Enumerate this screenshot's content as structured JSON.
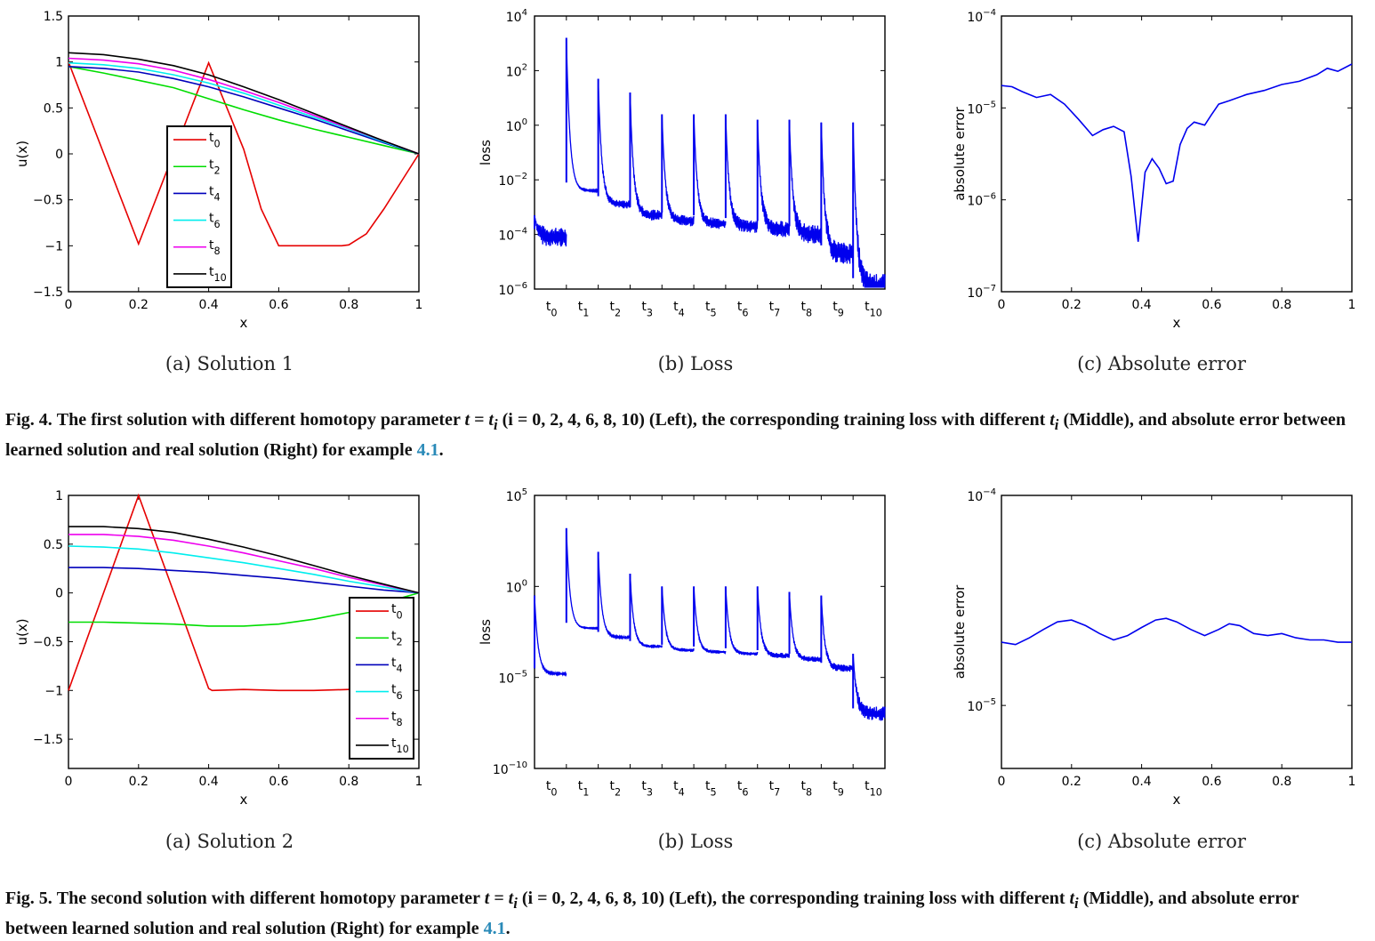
{
  "colors": {
    "t0": "#e60000",
    "t2": "#00dd00",
    "t4": "#0000bb",
    "t6": "#00eeee",
    "t8": "#ee00ee",
    "t10": "#000000",
    "loss": "#0000ee",
    "err": "#0000ee"
  },
  "legend_labels": [
    "t0",
    "t2",
    "t4",
    "t6",
    "t8",
    "t10"
  ],
  "loss_ticks": [
    "t0",
    "t1",
    "t2",
    "t3",
    "t4",
    "t5",
    "t6",
    "t7",
    "t8",
    "t9",
    "t10"
  ],
  "fig4": {
    "sub_a": "(a) Solution 1",
    "sub_b": "(b) Loss",
    "sub_c": "(c) Absolute error",
    "caption": {
      "label": "Fig. 4.",
      "text1": "The first solution with different homotopy parameter ",
      "math1": "t = t",
      "math1_sub": "i",
      "text2": " (i = 0, 2, 4, 6, 8, 10) (Left), the corresponding training loss with different ",
      "math2": "t",
      "math2_sub": "i",
      "text3": " (Middle), and absolute error between learned solution and real solution (Right) for example ",
      "ref": "4.1",
      "text4": "."
    }
  },
  "fig5": {
    "sub_a": "(a) Solution 2",
    "sub_b": "(b) Loss",
    "sub_c": "(c) Absolute error",
    "caption": {
      "label": "Fig. 5.",
      "text1": "The second solution with different homotopy parameter ",
      "math1": "t = t",
      "math1_sub": "i",
      "text2": " (i = 0, 2, 4, 6, 8, 10) (Left), the corresponding training loss with different ",
      "math2": "t",
      "math2_sub": "i",
      "text3": " (Middle), and absolute error between learned solution and real solution (Right) for example ",
      "ref": "4.1",
      "text4": "."
    }
  },
  "chart_data": [
    {
      "id": "sol1",
      "type": "line",
      "xlabel": "x",
      "ylabel": "u(x)",
      "xlim": [
        0,
        1
      ],
      "ylim": [
        -1.5,
        1.5
      ],
      "xticks": [
        0,
        0.2,
        0.4,
        0.6,
        0.8,
        1
      ],
      "xtick_labels": [
        "0",
        "0.2",
        "0.4",
        "0.6",
        "0.8",
        "1"
      ],
      "yticks": [
        -1.5,
        -1,
        -0.5,
        0,
        0.5,
        1,
        1.5
      ],
      "ytick_labels": [
        "−1.5",
        "−1",
        "−0.5",
        "0",
        "0.5",
        "1",
        "1.5"
      ],
      "legend": "center-left",
      "series": [
        {
          "name": "t0",
          "color": "#e60000",
          "x": [
            0,
            0.2,
            0.4,
            0.5,
            0.55,
            0.6,
            0.7,
            0.78,
            0.8,
            0.85,
            0.9,
            0.95,
            1
          ],
          "y": [
            1,
            -0.98,
            0.99,
            0.05,
            -0.6,
            -1.0,
            -1.0,
            -1.0,
            -0.99,
            -0.87,
            -0.6,
            -0.3,
            0
          ]
        },
        {
          "name": "t2",
          "color": "#00dd00",
          "x": [
            0,
            0.1,
            0.2,
            0.3,
            0.4,
            0.5,
            0.6,
            0.7,
            0.8,
            0.9,
            1
          ],
          "y": [
            0.95,
            0.88,
            0.8,
            0.72,
            0.6,
            0.48,
            0.37,
            0.27,
            0.18,
            0.09,
            0
          ]
        },
        {
          "name": "t4",
          "color": "#0000bb",
          "x": [
            0,
            0.1,
            0.2,
            0.3,
            0.4,
            0.5,
            0.6,
            0.7,
            0.8,
            0.9,
            1
          ],
          "y": [
            0.95,
            0.93,
            0.89,
            0.82,
            0.73,
            0.62,
            0.5,
            0.38,
            0.25,
            0.12,
            0
          ]
        },
        {
          "name": "t6",
          "color": "#00eeee",
          "x": [
            0,
            0.1,
            0.2,
            0.3,
            0.4,
            0.5,
            0.6,
            0.7,
            0.8,
            0.9,
            1
          ],
          "y": [
            0.99,
            0.97,
            0.93,
            0.86,
            0.77,
            0.66,
            0.53,
            0.4,
            0.27,
            0.13,
            0
          ]
        },
        {
          "name": "t8",
          "color": "#ee00ee",
          "x": [
            0,
            0.1,
            0.2,
            0.3,
            0.4,
            0.5,
            0.6,
            0.7,
            0.8,
            0.9,
            1
          ],
          "y": [
            1.04,
            1.02,
            0.98,
            0.91,
            0.81,
            0.69,
            0.56,
            0.42,
            0.28,
            0.14,
            0
          ]
        },
        {
          "name": "t10",
          "color": "#000000",
          "x": [
            0,
            0.1,
            0.2,
            0.3,
            0.4,
            0.5,
            0.6,
            0.7,
            0.8,
            0.9,
            1
          ],
          "y": [
            1.1,
            1.08,
            1.03,
            0.96,
            0.86,
            0.73,
            0.59,
            0.44,
            0.29,
            0.14,
            0
          ]
        }
      ]
    },
    {
      "id": "loss1",
      "type": "line",
      "ylabel": "loss",
      "log_y": true,
      "ylim_exp": [
        -6,
        4
      ],
      "ytick_exps": [
        -6,
        -4,
        -2,
        0,
        2,
        4
      ],
      "xlim": [
        0,
        11
      ],
      "xtick_positions": [
        0.5,
        1.5,
        2.5,
        3.5,
        4.5,
        5.5,
        6.5,
        7.5,
        8.5,
        9.5,
        10.5
      ],
      "series": [
        {
          "name": "loss",
          "color": "#0000ee",
          "segments": [
            {
              "x0": 0,
              "x1": 1,
              "peak": -3.3,
              "end": -4.1,
              "noise": 0.7
            },
            {
              "x0": 1,
              "x1": 2,
              "peak": 3.2,
              "end": -2.4,
              "noise": 0.05
            },
            {
              "x0": 2,
              "x1": 3,
              "peak": 1.7,
              "end": -2.9,
              "noise": 0.3
            },
            {
              "x0": 3,
              "x1": 4,
              "peak": 1.2,
              "end": -3.3,
              "noise": 0.4
            },
            {
              "x0": 4,
              "x1": 5,
              "peak": 0.4,
              "end": -3.5,
              "noise": 0.4
            },
            {
              "x0": 5,
              "x1": 6,
              "peak": 0.4,
              "end": -3.6,
              "noise": 0.4
            },
            {
              "x0": 6,
              "x1": 7,
              "peak": 0.4,
              "end": -3.7,
              "noise": 0.5
            },
            {
              "x0": 7,
              "x1": 8,
              "peak": 0.2,
              "end": -3.8,
              "noise": 0.6
            },
            {
              "x0": 8,
              "x1": 9,
              "peak": 0.2,
              "end": -4.0,
              "noise": 0.7
            },
            {
              "x0": 9,
              "x1": 10,
              "peak": 0.1,
              "end": -4.7,
              "noise": 0.8
            },
            {
              "x0": 10,
              "x1": 11,
              "peak": 0.1,
              "end": -5.9,
              "noise": 0.9
            }
          ]
        }
      ]
    },
    {
      "id": "err1",
      "type": "line",
      "xlabel": "x",
      "ylabel": "absolute error",
      "log_y": true,
      "ylim_exp": [
        -7,
        -4
      ],
      "ytick_exps": [
        -7,
        -6,
        -5,
        -4
      ],
      "xlim": [
        0,
        1
      ],
      "xticks": [
        0,
        0.2,
        0.4,
        0.6,
        0.8,
        1
      ],
      "xtick_labels": [
        "0",
        "0.2",
        "0.4",
        "0.6",
        "0.8",
        "1"
      ],
      "series": [
        {
          "name": "err",
          "color": "#0000ee",
          "x": [
            0,
            0.03,
            0.06,
            0.1,
            0.14,
            0.18,
            0.22,
            0.26,
            0.29,
            0.32,
            0.35,
            0.37,
            0.39,
            0.41,
            0.43,
            0.45,
            0.47,
            0.49,
            0.51,
            0.53,
            0.55,
            0.58,
            0.6,
            0.62,
            0.65,
            0.7,
            0.75,
            0.8,
            0.85,
            0.9,
            0.93,
            0.96,
            1
          ],
          "y": [
            1.75e-05,
            1.7e-05,
            1.5e-05,
            1.3e-05,
            1.4e-05,
            1.1e-05,
            7.5e-06,
            5e-06,
            5.8e-06,
            6.3e-06,
            5.5e-06,
            1.8e-06,
            3.5e-07,
            2e-06,
            2.8e-06,
            2.2e-06,
            1.5e-06,
            1.6e-06,
            4e-06,
            6e-06,
            7e-06,
            6.5e-06,
            8.5e-06,
            1.1e-05,
            1.2e-05,
            1.4e-05,
            1.55e-05,
            1.8e-05,
            1.95e-05,
            2.3e-05,
            2.7e-05,
            2.5e-05,
            3e-05
          ]
        }
      ]
    },
    {
      "id": "sol2",
      "type": "line",
      "xlabel": "x",
      "ylabel": "u(x)",
      "xlim": [
        0,
        1
      ],
      "ylim": [
        -1.8,
        1
      ],
      "xticks": [
        0,
        0.2,
        0.4,
        0.6,
        0.8,
        1
      ],
      "xtick_labels": [
        "0",
        "0.2",
        "0.4",
        "0.6",
        "0.8",
        "1"
      ],
      "yticks": [
        -1.5,
        -1,
        -0.5,
        0,
        0.5,
        1
      ],
      "ytick_labels": [
        "−1.5",
        "−1",
        "−0.5",
        "0",
        "0.5",
        "1"
      ],
      "legend": "bottom-right",
      "series": [
        {
          "name": "t0",
          "color": "#e60000",
          "x": [
            0,
            0.2,
            0.4,
            0.41,
            0.5,
            0.6,
            0.7,
            0.8
          ],
          "y": [
            -1,
            1,
            -0.98,
            -1.0,
            -0.99,
            -1.0,
            -1.0,
            -0.99
          ]
        },
        {
          "name": "t2",
          "color": "#00dd00",
          "x": [
            0,
            0.1,
            0.2,
            0.3,
            0.4,
            0.5,
            0.6,
            0.7,
            0.8,
            0.9,
            1
          ],
          "y": [
            -0.3,
            -0.3,
            -0.31,
            -0.32,
            -0.34,
            -0.34,
            -0.32,
            -0.27,
            -0.2,
            -0.1,
            0
          ]
        },
        {
          "name": "t4",
          "color": "#0000bb",
          "x": [
            0,
            0.1,
            0.2,
            0.3,
            0.4,
            0.5,
            0.6,
            0.7,
            0.8,
            0.9,
            1
          ],
          "y": [
            0.26,
            0.26,
            0.25,
            0.23,
            0.21,
            0.18,
            0.15,
            0.11,
            0.07,
            0.03,
            0
          ]
        },
        {
          "name": "t6",
          "color": "#00eeee",
          "x": [
            0,
            0.1,
            0.2,
            0.3,
            0.4,
            0.5,
            0.6,
            0.7,
            0.8,
            0.9,
            1
          ],
          "y": [
            0.48,
            0.47,
            0.45,
            0.41,
            0.36,
            0.31,
            0.25,
            0.19,
            0.12,
            0.06,
            0
          ]
        },
        {
          "name": "t8",
          "color": "#ee00ee",
          "x": [
            0,
            0.1,
            0.2,
            0.3,
            0.4,
            0.5,
            0.6,
            0.7,
            0.8,
            0.9,
            1
          ],
          "y": [
            0.6,
            0.6,
            0.58,
            0.54,
            0.48,
            0.41,
            0.33,
            0.25,
            0.16,
            0.08,
            0
          ]
        },
        {
          "name": "t10",
          "color": "#000000",
          "x": [
            0,
            0.1,
            0.2,
            0.3,
            0.4,
            0.5,
            0.6,
            0.7,
            0.8,
            0.9,
            1
          ],
          "y": [
            0.68,
            0.68,
            0.66,
            0.62,
            0.55,
            0.47,
            0.38,
            0.28,
            0.18,
            0.09,
            0
          ]
        }
      ]
    },
    {
      "id": "loss2",
      "type": "line",
      "ylabel": "loss",
      "log_y": true,
      "ylim_exp": [
        -10,
        5
      ],
      "ytick_exps": [
        -10,
        -5,
        0,
        5
      ],
      "xlim": [
        0,
        11
      ],
      "xtick_positions": [
        0.5,
        1.5,
        2.5,
        3.5,
        4.5,
        5.5,
        6.5,
        7.5,
        8.5,
        9.5,
        10.5
      ],
      "series": [
        {
          "name": "loss",
          "color": "#0000ee",
          "segments": [
            {
              "x0": 0,
              "x1": 1,
              "peak": -0.5,
              "end": -4.8,
              "noise": 0.1
            },
            {
              "x0": 1,
              "x1": 2,
              "peak": 3.2,
              "end": -2.3,
              "noise": 0.05
            },
            {
              "x0": 2,
              "x1": 3,
              "peak": 1.9,
              "end": -2.8,
              "noise": 0.1
            },
            {
              "x0": 3,
              "x1": 4,
              "peak": 0.7,
              "end": -3.3,
              "noise": 0.2
            },
            {
              "x0": 4,
              "x1": 5,
              "peak": 0.0,
              "end": -3.5,
              "noise": 0.2
            },
            {
              "x0": 5,
              "x1": 6,
              "peak": 0.0,
              "end": -3.6,
              "noise": 0.2
            },
            {
              "x0": 6,
              "x1": 7,
              "peak": 0.0,
              "end": -3.7,
              "noise": 0.2
            },
            {
              "x0": 7,
              "x1": 8,
              "peak": 0.0,
              "end": -3.8,
              "noise": 0.3
            },
            {
              "x0": 8,
              "x1": 9,
              "peak": -0.3,
              "end": -4.0,
              "noise": 0.3
            },
            {
              "x0": 9,
              "x1": 10,
              "peak": -0.5,
              "end": -4.5,
              "noise": 0.4
            },
            {
              "x0": 10,
              "x1": 11,
              "peak": -3.7,
              "end": -7.0,
              "noise": 0.8
            }
          ]
        }
      ]
    },
    {
      "id": "err2",
      "type": "line",
      "xlabel": "x",
      "ylabel": "absolute error",
      "log_y": true,
      "ylim_exp": [
        -5.3,
        -4
      ],
      "ytick_exps": [
        -5,
        -4
      ],
      "xlim": [
        0,
        1
      ],
      "xticks": [
        0,
        0.2,
        0.4,
        0.6,
        0.8,
        1
      ],
      "xtick_labels": [
        "0",
        "0.2",
        "0.4",
        "0.6",
        "0.8",
        "1"
      ],
      "series": [
        {
          "name": "err",
          "color": "#0000ee",
          "x": [
            0,
            0.04,
            0.08,
            0.12,
            0.16,
            0.2,
            0.24,
            0.28,
            0.32,
            0.36,
            0.4,
            0.44,
            0.47,
            0.5,
            0.54,
            0.58,
            0.62,
            0.65,
            0.68,
            0.72,
            0.76,
            0.8,
            0.84,
            0.88,
            0.92,
            0.96,
            1
          ],
          "y": [
            2e-05,
            1.95e-05,
            2.1e-05,
            2.3e-05,
            2.5e-05,
            2.55e-05,
            2.4e-05,
            2.2e-05,
            2.05e-05,
            2.15e-05,
            2.35e-05,
            2.55e-05,
            2.6e-05,
            2.5e-05,
            2.3e-05,
            2.15e-05,
            2.3e-05,
            2.45e-05,
            2.4e-05,
            2.2e-05,
            2.15e-05,
            2.2e-05,
            2.1e-05,
            2.05e-05,
            2.05e-05,
            2e-05,
            2e-05
          ]
        }
      ]
    }
  ]
}
